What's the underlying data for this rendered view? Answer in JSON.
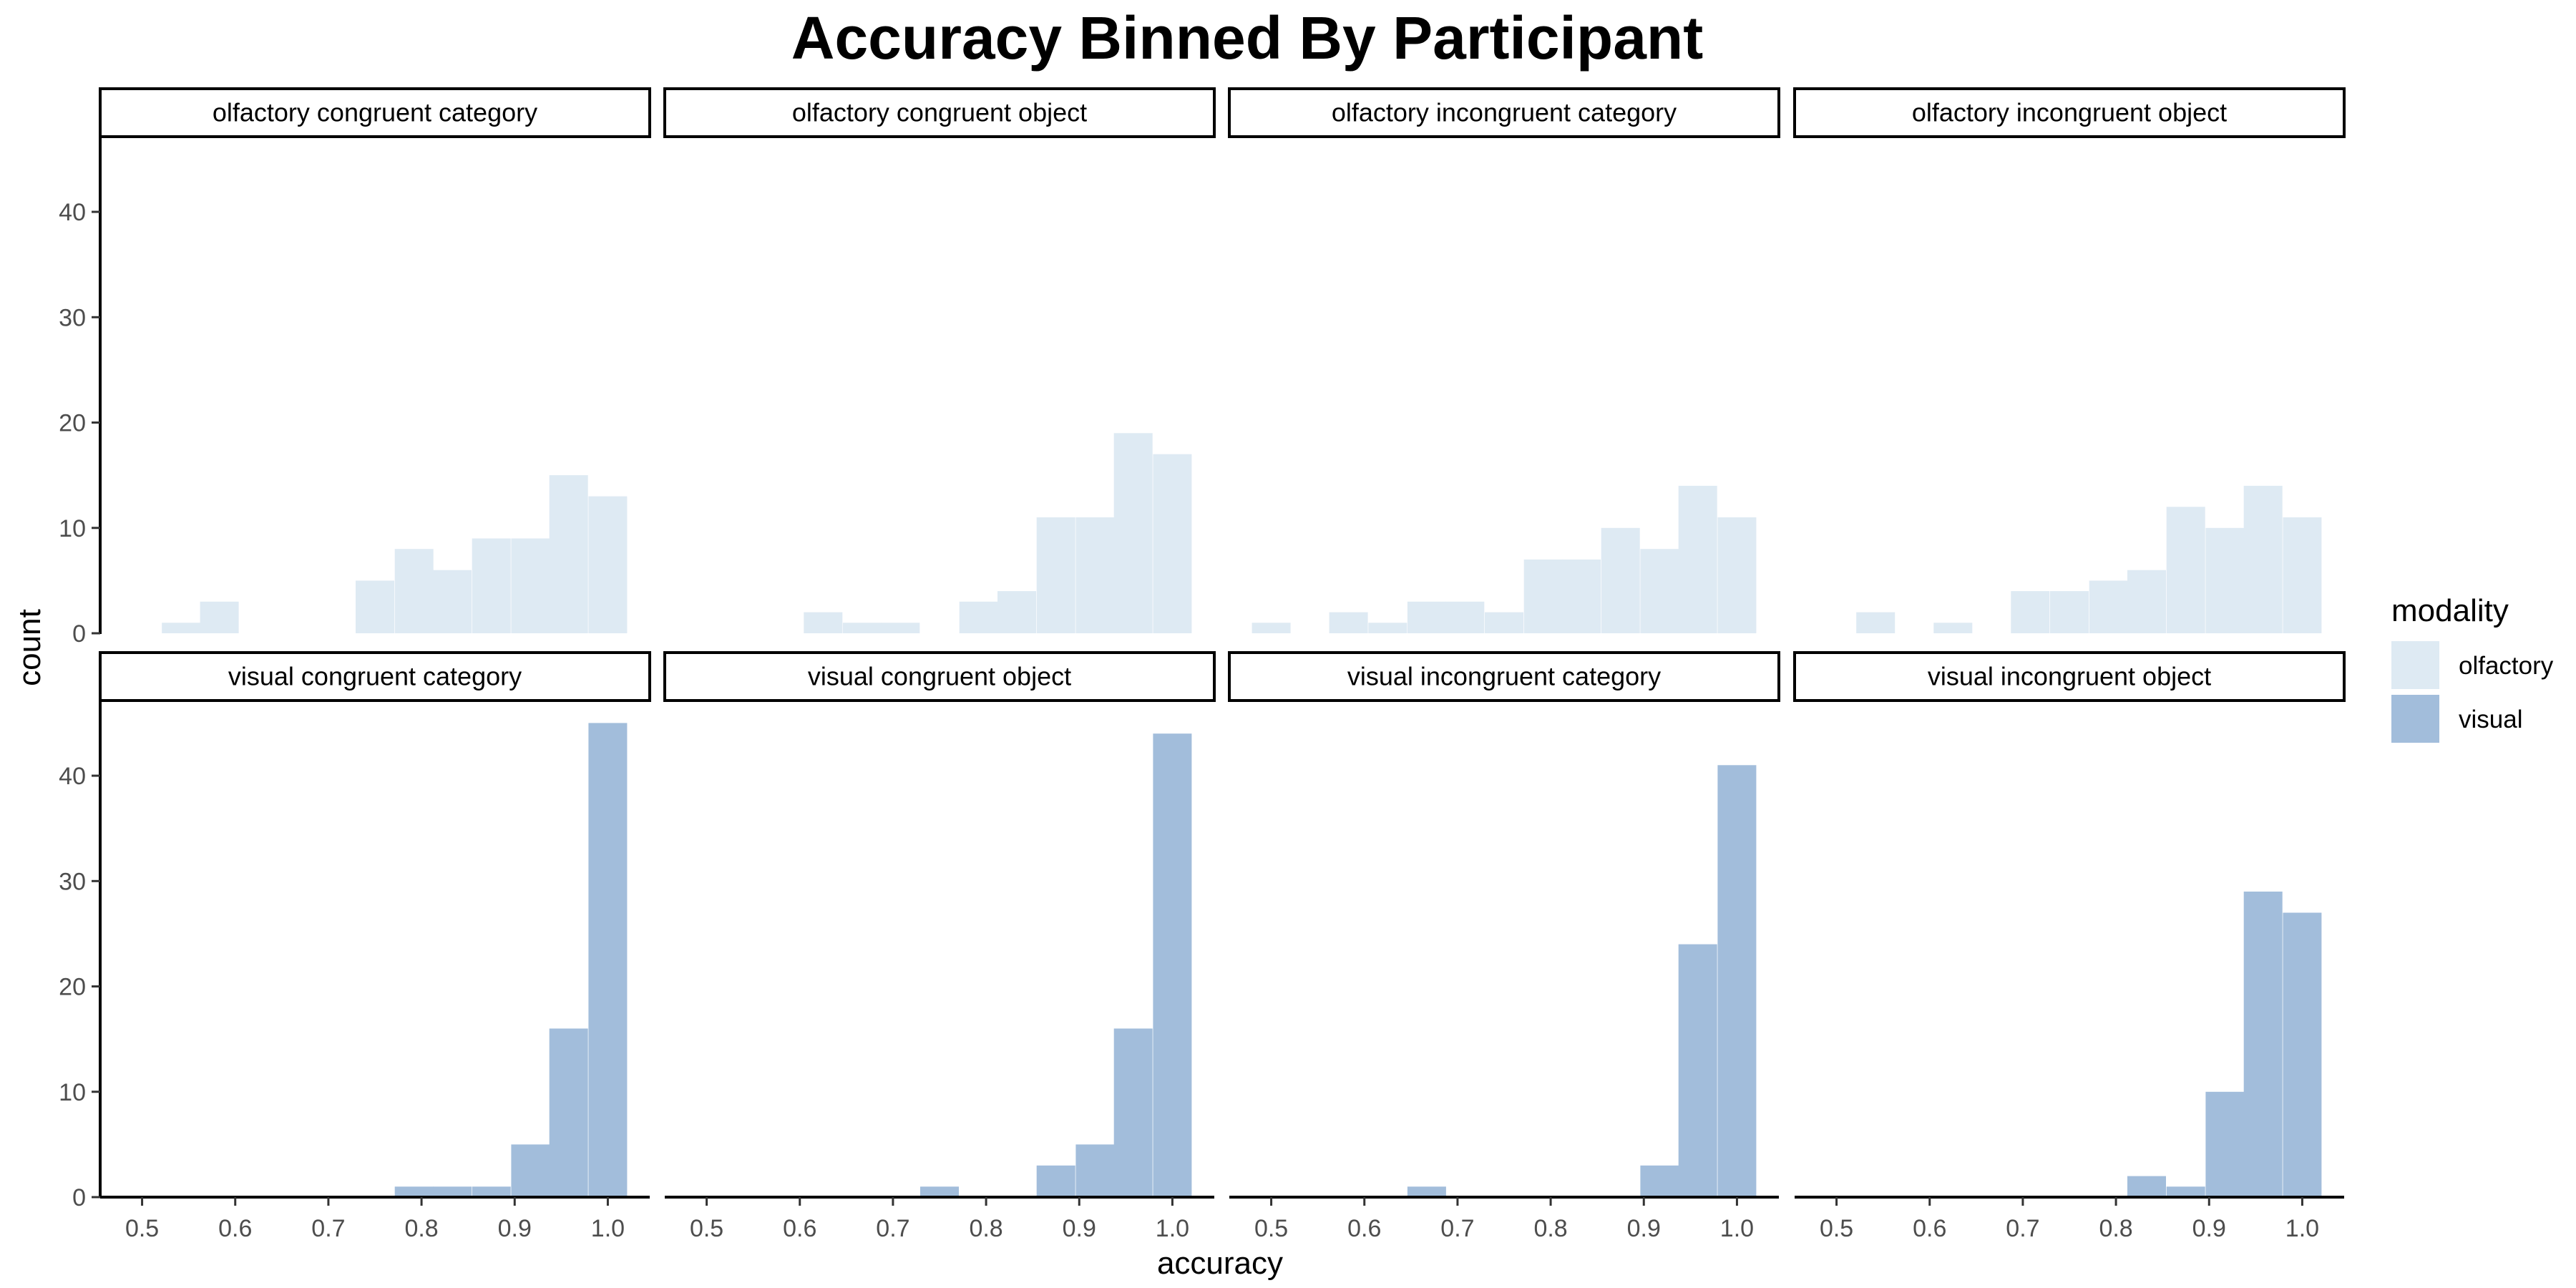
{
  "chart_data": {
    "type": "bar",
    "title": "Accuracy Binned By Participant",
    "xlabel": "accuracy",
    "ylabel": "count",
    "xlim": [
      0.455,
      1.045
    ],
    "ylim": [
      0,
      47
    ],
    "x_ticks": [
      0.5,
      0.6,
      0.7,
      0.8,
      0.9,
      1.0
    ],
    "x_tick_labels": [
      "0.5",
      "0.6",
      "0.7",
      "0.8",
      "0.9",
      "1.0"
    ],
    "y_ticks": [
      0,
      10,
      20,
      30,
      40
    ],
    "y_tick_labels": [
      "0",
      "10",
      "20",
      "30",
      "40"
    ],
    "bin_centers": [
      0.5,
      0.542,
      0.583,
      0.625,
      0.667,
      0.708,
      0.75,
      0.792,
      0.833,
      0.875,
      0.917,
      0.958,
      1.0
    ],
    "legend": {
      "title": "modality",
      "position": "right",
      "entries": [
        {
          "label": "olfactory",
          "color": "#deeaf3"
        },
        {
          "label": "visual",
          "color": "#a2bddb"
        }
      ]
    },
    "grid": false,
    "panels": [
      {
        "label": "olfactory congruent category",
        "modality": "olfactory",
        "values": [
          0,
          1,
          3,
          0,
          0,
          0,
          5,
          8,
          6,
          9,
          9,
          15,
          13
        ]
      },
      {
        "label": "olfactory congruent object",
        "modality": "olfactory",
        "values": [
          0,
          0,
          0,
          2,
          1,
          1,
          0,
          3,
          4,
          11,
          11,
          19,
          17
        ]
      },
      {
        "label": "olfactory incongruent category",
        "modality": "olfactory",
        "values": [
          1,
          0,
          2,
          1,
          3,
          3,
          2,
          7,
          7,
          10,
          8,
          14,
          11
        ]
      },
      {
        "label": "olfactory incongruent object",
        "modality": "olfactory",
        "values": [
          0,
          2,
          0,
          1,
          0,
          4,
          4,
          5,
          6,
          12,
          10,
          14,
          11
        ]
      },
      {
        "label": "visual congruent category",
        "modality": "visual",
        "values": [
          0,
          0,
          0,
          0,
          0,
          0,
          0,
          1,
          1,
          1,
          5,
          16,
          45
        ]
      },
      {
        "label": "visual congruent object",
        "modality": "visual",
        "values": [
          0,
          0,
          0,
          0,
          0,
          0,
          1,
          0,
          0,
          3,
          5,
          16,
          44
        ]
      },
      {
        "label": "visual incongruent category",
        "modality": "visual",
        "values": [
          0,
          0,
          0,
          0,
          1,
          0,
          0,
          0,
          0,
          0,
          3,
          24,
          41
        ]
      },
      {
        "label": "visual incongruent object",
        "modality": "visual",
        "values": [
          0,
          0,
          0,
          0,
          0,
          0,
          0,
          0,
          2,
          1,
          10,
          29,
          27
        ]
      }
    ]
  }
}
